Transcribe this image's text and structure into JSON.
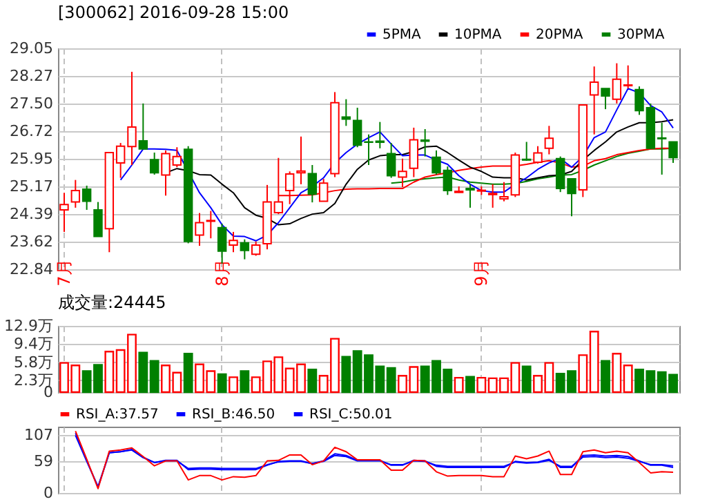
{
  "chart_data": [
    {
      "type": "candlestick",
      "title": "[300062] 2016-09-28 15:00",
      "categories": [
        "7月",
        null,
        null,
        null,
        null,
        null,
        null,
        null,
        null,
        null,
        null,
        null,
        null,
        null,
        "8月",
        null,
        null,
        null,
        null,
        null,
        null,
        null,
        null,
        null,
        null,
        null,
        null,
        null,
        null,
        null,
        null,
        null,
        null,
        null,
        null,
        null,
        null,
        "9月",
        null,
        null,
        null,
        null,
        null,
        null,
        null,
        null,
        null,
        null,
        null,
        null,
        null,
        null,
        null,
        null,
        null
      ],
      "ohlc": [
        [
          24.51,
          24.99,
          23.89,
          24.66
        ],
        [
          24.73,
          25.35,
          24.57,
          25.05
        ],
        [
          25.09,
          25.19,
          24.51,
          24.75
        ],
        [
          24.51,
          24.73,
          23.76,
          23.76
        ],
        [
          23.98,
          26.12,
          23.32,
          26.12
        ],
        [
          25.83,
          26.39,
          25.41,
          26.3
        ],
        [
          26.29,
          28.39,
          25.77,
          26.84
        ],
        [
          26.45,
          27.5,
          26.22,
          26.22
        ],
        [
          25.92,
          26.12,
          25.5,
          25.55
        ],
        [
          25.49,
          26.18,
          24.91,
          26.09
        ],
        [
          25.77,
          26.27,
          25.71,
          26.01
        ],
        [
          26.21,
          26.3,
          23.57,
          23.62
        ],
        [
          23.8,
          24.42,
          23.5,
          24.15
        ],
        [
          24.19,
          24.48,
          23.71,
          24.21
        ],
        [
          24.01,
          24.12,
          23.0,
          23.35
        ],
        [
          23.52,
          23.89,
          23.32,
          23.65
        ],
        [
          23.58,
          23.68,
          23.12,
          23.37
        ],
        [
          23.26,
          23.62,
          23.22,
          23.52
        ],
        [
          23.56,
          25.21,
          23.4,
          24.73
        ],
        [
          24.43,
          25.97,
          24.39,
          24.73
        ],
        [
          25.05,
          25.59,
          24.67,
          25.52
        ],
        [
          25.55,
          26.57,
          25.23,
          25.6
        ],
        [
          25.53,
          25.77,
          24.72,
          24.95
        ],
        [
          24.75,
          25.38,
          24.75,
          25.26
        ],
        [
          25.53,
          27.82,
          25.43,
          27.52
        ],
        [
          27.12,
          27.62,
          26.87,
          27.06
        ],
        [
          27.02,
          27.38,
          26.27,
          26.33
        ],
        [
          26.42,
          26.63,
          25.77,
          26.41
        ],
        [
          26.44,
          26.98,
          26.24,
          26.41
        ],
        [
          26.09,
          26.39,
          25.41,
          25.47
        ],
        [
          25.43,
          25.95,
          25.15,
          25.59
        ],
        [
          25.68,
          26.82,
          25.43,
          26.48
        ],
        [
          26.47,
          26.78,
          26.01,
          26.44
        ],
        [
          25.99,
          26.18,
          25.5,
          25.55
        ],
        [
          25.62,
          25.73,
          24.93,
          25.05
        ],
        [
          25.0,
          25.17,
          24.99,
          25.03
        ],
        [
          25.11,
          25.23,
          24.57,
          25.07
        ],
        [
          25.04,
          25.17,
          24.93,
          25.06
        ],
        [
          24.94,
          25.23,
          24.57,
          24.97
        ],
        [
          24.82,
          25.29,
          24.75,
          24.88
        ],
        [
          24.93,
          26.12,
          24.87,
          26.05
        ],
        [
          25.93,
          26.42,
          25.89,
          25.91
        ],
        [
          25.85,
          26.3,
          25.81,
          26.11
        ],
        [
          26.24,
          26.87,
          26.07,
          26.52
        ],
        [
          25.95,
          26.01,
          25.01,
          25.11
        ],
        [
          25.38,
          25.38,
          24.33,
          24.97
        ],
        [
          25.07,
          27.46,
          24.87,
          27.46
        ],
        [
          27.74,
          28.54,
          26.63,
          28.1
        ],
        [
          27.92,
          27.92,
          27.34,
          27.71
        ],
        [
          27.62,
          28.63,
          27.5,
          28.18
        ],
        [
          28.0,
          28.57,
          27.92,
          28.02
        ],
        [
          27.89,
          27.98,
          27.18,
          27.3
        ],
        [
          27.38,
          27.5,
          26.22,
          26.24
        ],
        [
          26.53,
          26.96,
          25.5,
          26.51
        ],
        [
          26.42,
          26.42,
          25.83,
          25.98
        ]
      ],
      "colors": [
        "#ff0000",
        "#ff0000",
        "#008000",
        "#008000",
        "#ff0000",
        "#ff0000",
        "#ff0000",
        "#008000",
        "#008000",
        "#ff0000",
        "#ff0000",
        "#008000",
        "#ff0000",
        "#ff0000",
        "#008000",
        "#ff0000",
        "#008000",
        "#ff0000",
        "#ff0000",
        "#ff0000",
        "#ff0000",
        "#ff0000",
        "#008000",
        "#ff0000",
        "#ff0000",
        "#008000",
        "#008000",
        "#008000",
        "#008000",
        "#008000",
        "#ff0000",
        "#ff0000",
        "#008000",
        "#008000",
        "#008000",
        "#ff0000",
        "#008000",
        "#ff0000",
        "#ff0000",
        "#ff0000",
        "#ff0000",
        "#008000",
        "#ff0000",
        "#ff0000",
        "#008000",
        "#008000",
        "#ff0000",
        "#ff0000",
        "#008000",
        "#ff0000",
        "#ff0000",
        "#008000",
        "#008000",
        "#008000",
        "#008000"
      ],
      "series": [
        {
          "name": "5PMA",
          "type": "line",
          "color": "#0000ff",
          "values": [
            null,
            null,
            null,
            null,
            null,
            25.35,
            25.77,
            26.22,
            26.22,
            26.21,
            26.18,
            null,
            24.99,
            24.57,
            24.09,
            23.77,
            23.76,
            23.64,
            23.8,
            24.15,
            24.57,
            24.99,
            25.17,
            25.41,
            25.83,
            26.12,
            26.36,
            26.54,
            26.7,
            26.36,
            26.03,
            26.05,
            26.05,
            25.91,
            25.79,
            25.47,
            25.23,
            25.05,
            25.01,
            25.01,
            25.23,
            25.41,
            25.65,
            25.83,
            25.95,
            25.71,
            26.01,
            26.54,
            26.7,
            27.32,
            27.92,
            27.8,
            27.44,
            27.26,
            26.81
          ]
        },
        {
          "name": "10PMA",
          "type": "line",
          "color": "#000000",
          "values": [
            null,
            null,
            null,
            null,
            null,
            null,
            null,
            null,
            null,
            25.55,
            25.67,
            25.61,
            25.5,
            25.49,
            25.23,
            24.99,
            24.57,
            24.36,
            24.27,
            24.09,
            24.12,
            24.27,
            24.39,
            24.43,
            24.69,
            25.23,
            25.65,
            25.91,
            26.03,
            26.06,
            26.06,
            26.15,
            26.28,
            26.3,
            26.12,
            25.91,
            25.71,
            25.59,
            25.43,
            25.41,
            25.41,
            25.35,
            25.41,
            25.47,
            25.49,
            25.59,
            25.91,
            26.18,
            26.42,
            26.7,
            26.84,
            26.96,
            26.96,
            26.99,
            27.04
          ]
        },
        {
          "name": "20PMA",
          "type": "line",
          "color": "#ff0000",
          "values": [
            null,
            null,
            null,
            null,
            null,
            null,
            null,
            null,
            null,
            null,
            null,
            null,
            null,
            null,
            null,
            null,
            null,
            null,
            null,
            24.91,
            24.91,
            24.92,
            24.93,
            24.99,
            25.05,
            25.09,
            25.1,
            25.1,
            25.11,
            25.11,
            25.11,
            25.29,
            25.43,
            25.5,
            25.55,
            25.62,
            25.67,
            25.71,
            25.74,
            25.74,
            25.74,
            25.79,
            25.85,
            25.89,
            25.83,
            25.71,
            25.74,
            25.89,
            25.95,
            26.06,
            26.12,
            26.18,
            26.22,
            26.24,
            26.24
          ]
        },
        {
          "name": "30PMA",
          "type": "line",
          "color": "#008000",
          "values": [
            null,
            null,
            null,
            null,
            null,
            null,
            null,
            null,
            null,
            null,
            null,
            null,
            null,
            null,
            null,
            null,
            null,
            null,
            null,
            null,
            null,
            null,
            null,
            null,
            null,
            null,
            null,
            null,
            null,
            25.26,
            25.29,
            25.35,
            25.38,
            25.41,
            25.43,
            25.35,
            25.29,
            25.26,
            25.23,
            25.23,
            25.25,
            25.31,
            25.38,
            25.43,
            25.49,
            25.5,
            25.62,
            25.77,
            25.89,
            26.01,
            26.1,
            26.16,
            26.22,
            26.22,
            26.24
          ]
        }
      ],
      "ylim": [
        22.84,
        29.05
      ],
      "yticks": [
        22.84,
        23.62,
        24.39,
        25.17,
        25.95,
        26.72,
        {
          "value": 27.5,
          "label": "27.50"
        },
        28.27,
        29.05
      ],
      "grid": true,
      "legend": "top right"
    },
    {
      "type": "bar",
      "annotations": [
        "成交量:24445"
      ],
      "categories": [
        null,
        null,
        null,
        null,
        null,
        null,
        null,
        null,
        null,
        null,
        null,
        null,
        null,
        null,
        null,
        null,
        null,
        null,
        null,
        null,
        null,
        null,
        null,
        null,
        null,
        null,
        null,
        null,
        null,
        null,
        null,
        null,
        null,
        null,
        null,
        null,
        null,
        null,
        null,
        null,
        null,
        null,
        null,
        null,
        null,
        null,
        null,
        null,
        null,
        null,
        null,
        null,
        null,
        null,
        null
      ],
      "values": [
        5.7,
        5.2,
        4.1,
        5.3,
        7.9,
        8.2,
        11.2,
        7.7,
        6.1,
        5.2,
        3.8,
        7.5,
        5.4,
        4.1,
        3.5,
        2.9,
        4.1,
        2.9,
        6.0,
        6.8,
        4.6,
        5.4,
        4.4,
        3.2,
        10.4,
        6.9,
        8.0,
        7.2,
        5.0,
        4.7,
        3.2,
        4.9,
        5.0,
        6.1,
        4.4,
        2.8,
        3.0,
        2.8,
        2.7,
        2.7,
        5.7,
        5.0,
        3.2,
        5.7,
        3.6,
        4.1,
        7.2,
        11.8,
        6.1,
        7.5,
        5.2,
        4.4,
        4.1,
        3.9,
        3.4
      ],
      "colors": [
        "#ff0000",
        "#ff0000",
        "#008000",
        "#008000",
        "#ff0000",
        "#ff0000",
        "#ff0000",
        "#008000",
        "#008000",
        "#ff0000",
        "#ff0000",
        "#008000",
        "#ff0000",
        "#ff0000",
        "#008000",
        "#ff0000",
        "#008000",
        "#ff0000",
        "#ff0000",
        "#ff0000",
        "#ff0000",
        "#ff0000",
        "#008000",
        "#ff0000",
        "#ff0000",
        "#008000",
        "#008000",
        "#008000",
        "#008000",
        "#008000",
        "#ff0000",
        "#ff0000",
        "#008000",
        "#008000",
        "#008000",
        "#ff0000",
        "#008000",
        "#ff0000",
        "#ff0000",
        "#ff0000",
        "#ff0000",
        "#008000",
        "#ff0000",
        "#ff0000",
        "#008000",
        "#008000",
        "#ff0000",
        "#ff0000",
        "#008000",
        "#ff0000",
        "#ff0000",
        "#008000",
        "#008000",
        "#008000",
        "#008000"
      ],
      "ylim": [
        0,
        12.9
      ],
      "yticks": [
        0,
        {
          "value": 2.3,
          "label": "2.3万"
        },
        {
          "value": 5.8,
          "label": "5.8万"
        },
        {
          "value": 9.4,
          "label": "9.4万"
        },
        {
          "value": 12.9,
          "label": "12.9万"
        }
      ],
      "grid": true,
      "tick_labels": "y"
    },
    {
      "type": "line",
      "categories": [
        null,
        null,
        null,
        null,
        null,
        null,
        null,
        null,
        null,
        null,
        null,
        null,
        null,
        null,
        null,
        null,
        null,
        null,
        null,
        null,
        null,
        null,
        null,
        null,
        null,
        null,
        null,
        null,
        null,
        null,
        null,
        null,
        null,
        null,
        null,
        null,
        null,
        null,
        null,
        null,
        null,
        null,
        null,
        null,
        null,
        null,
        null,
        null,
        null,
        null,
        null,
        null,
        null,
        null,
        null
      ],
      "series": [
        {
          "name": "RSI_A:37.57",
          "color": "#ff0000",
          "values": [
            null,
            114,
            62,
            8,
            77,
            79,
            83,
            67,
            50,
            59,
            59,
            24,
            32,
            32,
            24,
            30,
            29,
            32,
            59,
            60,
            70,
            70,
            52,
            59,
            84,
            76,
            61,
            61,
            61,
            42,
            42,
            60,
            59,
            39,
            31,
            32,
            32,
            32,
            30,
            30,
            68,
            63,
            68,
            77,
            34,
            34,
            76,
            79,
            74,
            77,
            74,
            56,
            37,
            39,
            38
          ]
        },
        {
          "name": "RSI_B:46.50",
          "color": "#0000ff",
          "values": [
            null,
            110,
            60,
            10,
            74,
            76,
            80,
            66,
            56,
            60,
            60,
            43,
            44,
            44,
            43,
            43,
            43,
            43,
            51,
            58,
            59,
            59,
            54,
            59,
            72,
            69,
            60,
            60,
            60,
            51,
            51,
            60,
            59,
            49,
            47,
            47,
            47,
            47,
            47,
            47,
            58,
            56,
            57,
            62,
            47,
            47,
            69,
            70,
            68,
            69,
            67,
            59,
            51,
            51,
            47
          ]
        },
        {
          "name": "RSI_C:50.01",
          "color": "#0000ff",
          "values": [
            null,
            106,
            58,
            12,
            74,
            76,
            79,
            65,
            56,
            59,
            59,
            45,
            46,
            46,
            45,
            45,
            45,
            45,
            52,
            57,
            58,
            58,
            54,
            58,
            69,
            67,
            59,
            59,
            59,
            52,
            52,
            59,
            58,
            51,
            49,
            49,
            49,
            49,
            49,
            49,
            57,
            55,
            56,
            60,
            49,
            49,
            66,
            67,
            65,
            66,
            64,
            58,
            52,
            52,
            50
          ]
        }
      ],
      "ylim": [
        0,
        122
      ],
      "yticks": [
        0,
        59,
        107
      ],
      "grid": true,
      "legend": "top left",
      "tick_labels": "y"
    }
  ]
}
